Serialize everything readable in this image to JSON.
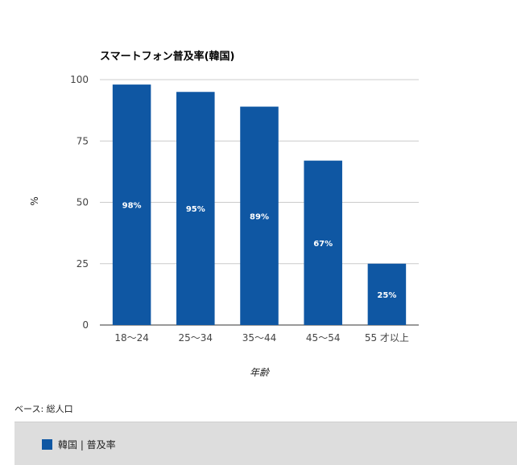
{
  "chart_data": {
    "type": "bar",
    "title": "スマートフォン普及率(韓国)",
    "xlabel": "年齢",
    "ylabel": "%",
    "categories": [
      "18～24",
      "25～34",
      "35～44",
      "45～54",
      "55 才以上"
    ],
    "series": [
      {
        "name": "韓国 | 普及率",
        "values": [
          98,
          95,
          89,
          67,
          25
        ],
        "labels": [
          "98%",
          "95%",
          "89%",
          "67%",
          "25%"
        ],
        "color": "#0f57a3"
      }
    ],
    "ylim": [
      0,
      100
    ],
    "yticks": [
      0,
      25,
      50,
      75,
      100
    ],
    "grid": true,
    "legend": "bottom"
  },
  "note": "ベース: 総人口"
}
